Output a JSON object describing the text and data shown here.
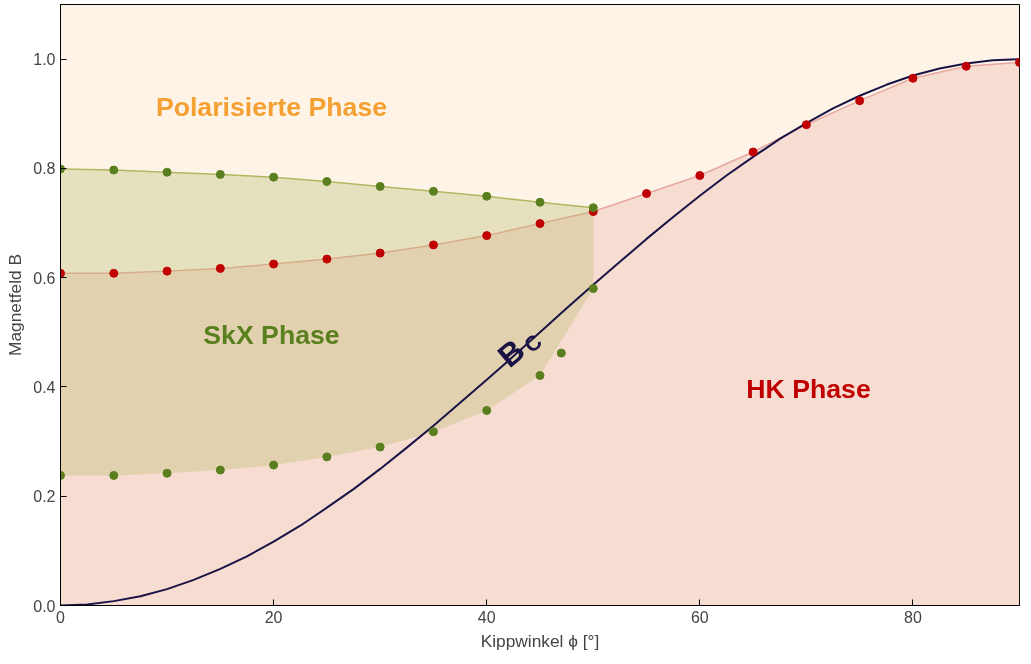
{
  "chart_data": {
    "type": "scatter",
    "xlabel": "Kippwinkel ϕ [°]",
    "ylabel": "Magnetfeld B",
    "xlim": [
      0,
      90
    ],
    "ylim": [
      0,
      1.1
    ],
    "xticks": [
      0,
      20,
      40,
      60,
      80
    ],
    "yticks": [
      {
        "value": 0,
        "label": "0.0"
      },
      {
        "value": 0.2,
        "label": "0.2"
      },
      {
        "value": 0.4,
        "label": "0.4"
      },
      {
        "value": 0.6,
        "label": "0.6"
      },
      {
        "value": 0.8,
        "label": "0.8"
      },
      {
        "value": 1,
        "label": "1.0"
      }
    ],
    "marker": "circle",
    "grid": false,
    "series": [
      {
        "type": "area",
        "marker": "none",
        "color": "#e8a8a0",
        "x": [
          0,
          5,
          10,
          15,
          20,
          25,
          30,
          35,
          40,
          45,
          50,
          55,
          60,
          65,
          70,
          75,
          80,
          85,
          90
        ],
        "values": [
          0.608,
          0.608,
          0.612,
          0.617,
          0.625,
          0.634,
          0.645,
          0.66,
          0.677,
          0.699,
          0.721,
          0.754,
          0.787,
          0.83,
          0.88,
          0.924,
          0.965,
          0.987,
          0.994
        ]
      },
      {
        "type": "line",
        "marker": "none",
        "color": "#b0b860",
        "x": [
          0,
          5,
          10,
          15,
          20,
          25,
          30,
          35,
          40,
          45,
          50
        ],
        "values": [
          0.799,
          0.797,
          0.793,
          0.789,
          0.784,
          0.776,
          0.767,
          0.758,
          0.749,
          0.738,
          0.728
        ],
        "lower": [
          0.238,
          0.238,
          0.242,
          0.248,
          0.257,
          0.272,
          0.29,
          0.318,
          0.357,
          0.421,
          0.58
        ],
        "upper": [
          0.799,
          0.797,
          0.793,
          0.789,
          0.784,
          0.776,
          0.767,
          0.758,
          0.749,
          0.738,
          0.728
        ]
      },
      {
        "type": "line",
        "marker": "none",
        "color": "#1a1446",
        "x": [
          0,
          2.5,
          5,
          7.5,
          10,
          12.5,
          15,
          17.5,
          20,
          22.5,
          25,
          27.5,
          30,
          32.5,
          35,
          37.5,
          40,
          42.5,
          45,
          47.5,
          50,
          52.5,
          55,
          57.5,
          60,
          62.5,
          65,
          67.5,
          70,
          72.5,
          75,
          77.5,
          80,
          82.5,
          85,
          87.5,
          90
        ],
        "values": [
          0,
          0.002,
          0.008,
          0.017,
          0.03,
          0.047,
          0.067,
          0.09,
          0.117,
          0.146,
          0.179,
          0.213,
          0.25,
          0.289,
          0.329,
          0.371,
          0.413,
          0.456,
          0.5,
          0.544,
          0.587,
          0.629,
          0.671,
          0.711,
          0.75,
          0.787,
          0.821,
          0.854,
          0.883,
          0.91,
          0.933,
          0.953,
          0.97,
          0.983,
          0.992,
          0.998,
          1.0
        ]
      },
      {
        "color": "#c00000",
        "x": [
          0,
          5,
          10,
          15,
          20,
          25,
          30,
          35,
          40,
          45,
          50,
          55,
          60,
          65,
          70,
          75,
          80,
          85,
          90
        ],
        "values": [
          0.608,
          0.608,
          0.612,
          0.617,
          0.625,
          0.634,
          0.645,
          0.66,
          0.677,
          0.699,
          0.721,
          0.754,
          0.787,
          0.83,
          0.88,
          0.924,
          0.965,
          0.987,
          0.994
        ]
      },
      {
        "color": "#5a7f1e",
        "x": [
          0,
          5,
          10,
          15,
          20,
          25,
          30,
          35,
          40,
          45,
          50
        ],
        "values": [
          0.799,
          0.797,
          0.793,
          0.789,
          0.784,
          0.776,
          0.767,
          0.758,
          0.749,
          0.738,
          0.728
        ]
      },
      {
        "color": "#5a7f1e",
        "x": [
          0,
          5,
          10,
          15,
          20,
          25,
          30,
          35,
          40,
          45,
          47,
          50
        ],
        "values": [
          0.238,
          0.238,
          0.242,
          0.248,
          0.257,
          0.272,
          0.29,
          0.318,
          0.357,
          0.421,
          0.462,
          0.58
        ]
      }
    ],
    "annotations": [
      "Polarisierte Phase",
      "SkX Phase",
      "HK Phase",
      "B$_{C}$"
    ]
  }
}
